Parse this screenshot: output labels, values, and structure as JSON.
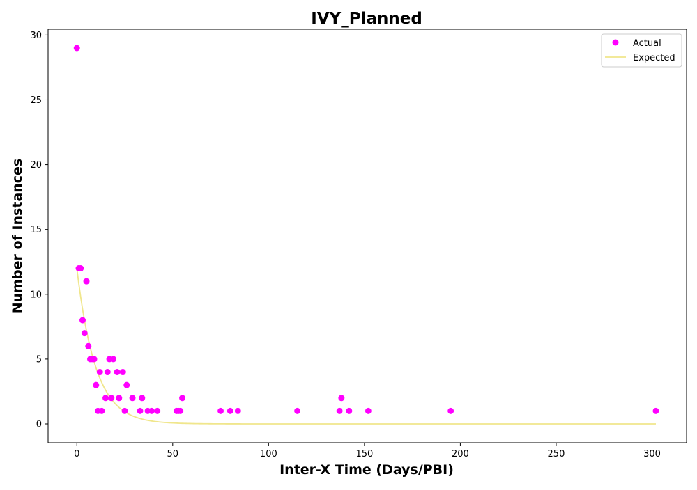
{
  "chart_data": {
    "type": "scatter",
    "title": "IVY_Planned",
    "xlabel": "Inter-X Time (Days/PBI)",
    "ylabel": "Number of Instances",
    "xlim": [
      -15,
      318
    ],
    "ylim": [
      -1.45,
      30.45
    ],
    "xticks": [
      0,
      50,
      100,
      150,
      200,
      250,
      300
    ],
    "yticks": [
      0,
      5,
      10,
      15,
      20,
      25,
      30
    ],
    "grid": false,
    "legend_position": "top-right",
    "colors": {
      "actual": "#ff00ff",
      "expected": "#f0e68c"
    },
    "series": [
      {
        "name": "Actual",
        "kind": "scatter",
        "points": [
          [
            0,
            29
          ],
          [
            1,
            12
          ],
          [
            2,
            12
          ],
          [
            3,
            8
          ],
          [
            4,
            7
          ],
          [
            5,
            11
          ],
          [
            6,
            6
          ],
          [
            7,
            5
          ],
          [
            8,
            5
          ],
          [
            9,
            5
          ],
          [
            10,
            3
          ],
          [
            11,
            1
          ],
          [
            12,
            4
          ],
          [
            13,
            1
          ],
          [
            15,
            2
          ],
          [
            16,
            4
          ],
          [
            17,
            5
          ],
          [
            18,
            2
          ],
          [
            19,
            5
          ],
          [
            21,
            4
          ],
          [
            22,
            2
          ],
          [
            24,
            4
          ],
          [
            25,
            1
          ],
          [
            26,
            3
          ],
          [
            29,
            2
          ],
          [
            33,
            1
          ],
          [
            34,
            2
          ],
          [
            37,
            1
          ],
          [
            39,
            1
          ],
          [
            42,
            1
          ],
          [
            52,
            1
          ],
          [
            53,
            1
          ],
          [
            54,
            1
          ],
          [
            55,
            2
          ],
          [
            75,
            1
          ],
          [
            80,
            1
          ],
          [
            84,
            1
          ],
          [
            115,
            1
          ],
          [
            137,
            1
          ],
          [
            138,
            2
          ],
          [
            142,
            1
          ],
          [
            152,
            1
          ],
          [
            195,
            1
          ],
          [
            302,
            1
          ]
        ]
      },
      {
        "name": "Expected",
        "kind": "line",
        "a": 12,
        "decay": 0.102,
        "x_range": [
          0,
          302
        ]
      }
    ]
  }
}
